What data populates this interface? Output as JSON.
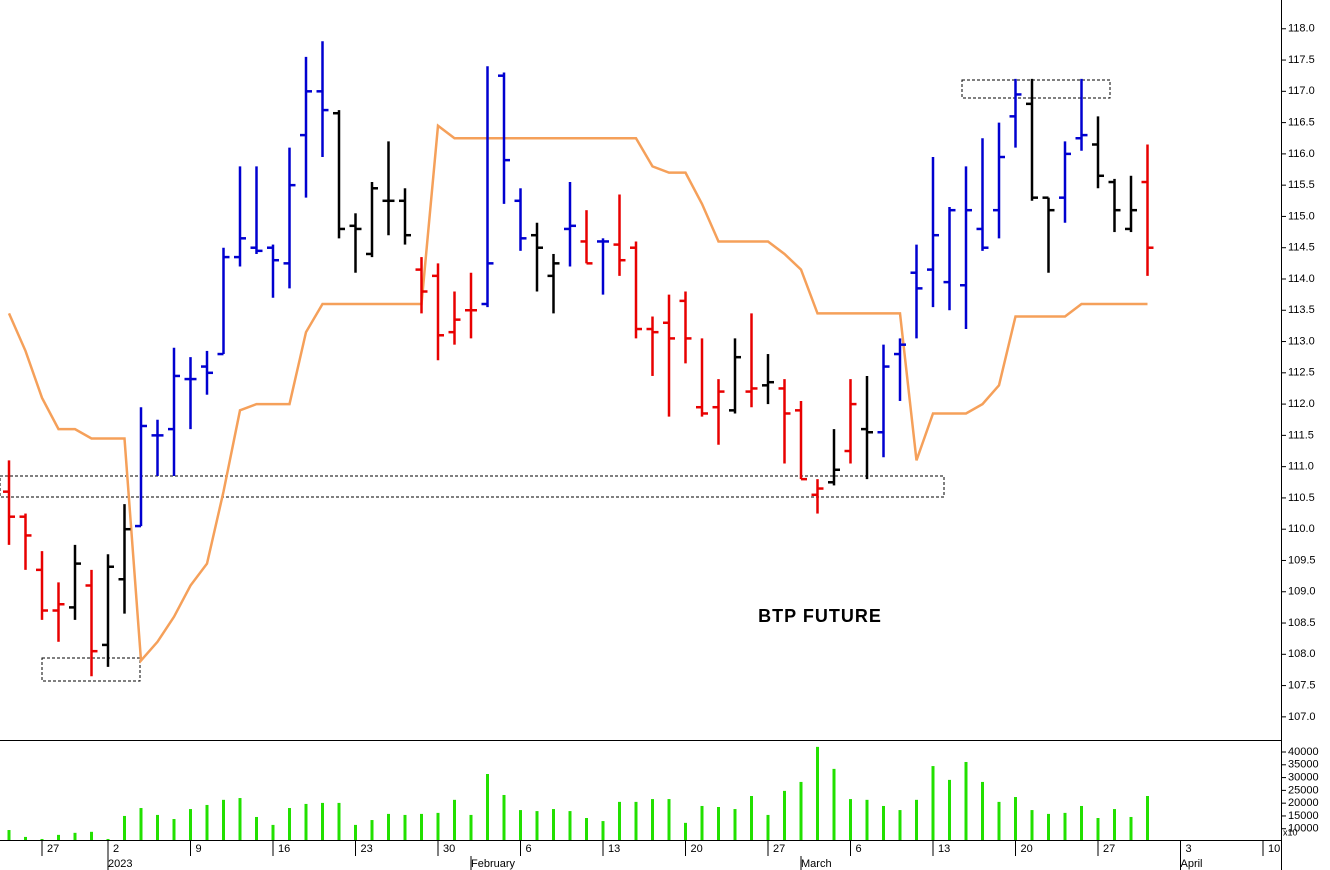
{
  "chart_data": [
    {
      "type": "ohlc",
      "title": "BTP FUTURE",
      "open": [
        110.6,
        110.2,
        109.35,
        108.7,
        108.75,
        109.1,
        108.15,
        109.2,
        110.05,
        111.5,
        111.6,
        112.4,
        112.6,
        112.8,
        114.35,
        114.5,
        114.5,
        114.25,
        116.3,
        117.0,
        116.65,
        114.85,
        114.4,
        115.25,
        115.25,
        114.15,
        114.05,
        113.15,
        113.5,
        113.6,
        117.25,
        115.25,
        114.7,
        114.05,
        114.8,
        114.6,
        114.6,
        114.55,
        114.5,
        113.2,
        113.3,
        113.65,
        111.95,
        111.95,
        111.9,
        112.2,
        112.3,
        112.25,
        111.9,
        110.55,
        110.75,
        111.25,
        111.6,
        111.55,
        112.8,
        114.1,
        114.15,
        113.95,
        113.9,
        114.8,
        115.1,
        116.6,
        116.8,
        115.3,
        115.3,
        116.25,
        116.15,
        115.55,
        114.8,
        115.55,
        null,
        null,
        null,
        null,
        null,
        null,
        null,
        null
      ],
      "high": [
        111.1,
        110.25,
        109.65,
        109.15,
        109.75,
        109.35,
        109.6,
        110.4,
        111.95,
        111.75,
        112.9,
        112.75,
        112.85,
        114.5,
        115.8,
        115.8,
        114.55,
        116.1,
        117.55,
        117.8,
        116.7,
        115.05,
        115.55,
        116.2,
        115.45,
        114.35,
        114.25,
        113.8,
        114.1,
        117.4,
        117.3,
        115.45,
        114.9,
        114.4,
        115.55,
        115.1,
        114.65,
        115.35,
        114.6,
        113.4,
        113.75,
        113.8,
        113.05,
        112.4,
        113.05,
        113.45,
        112.8,
        112.4,
        112.05,
        110.8,
        111.6,
        112.4,
        112.45,
        112.95,
        113.05,
        114.55,
        115.95,
        115.15,
        115.8,
        116.25,
        116.5,
        117.2,
        117.2,
        115.3,
        116.2,
        117.2,
        116.6,
        115.6,
        115.65,
        116.15,
        null,
        null,
        null,
        null,
        null,
        null,
        null,
        null
      ],
      "low": [
        109.75,
        109.35,
        108.55,
        108.2,
        108.55,
        107.65,
        107.8,
        108.65,
        110.05,
        110.85,
        110.85,
        111.6,
        112.15,
        112.8,
        114.2,
        114.4,
        113.7,
        113.85,
        115.3,
        115.95,
        114.65,
        114.1,
        114.35,
        114.7,
        114.55,
        113.45,
        112.7,
        112.95,
        113.05,
        113.55,
        115.2,
        114.45,
        113.8,
        113.45,
        114.2,
        114.25,
        113.75,
        114.05,
        113.05,
        112.45,
        111.8,
        112.65,
        111.8,
        111.35,
        111.85,
        111.95,
        112.0,
        111.05,
        110.8,
        110.25,
        110.7,
        111.05,
        110.8,
        111.15,
        112.05,
        113.05,
        113.55,
        113.5,
        113.2,
        114.45,
        114.65,
        116.1,
        115.25,
        114.1,
        114.9,
        116.05,
        115.45,
        114.75,
        114.75,
        114.05,
        null,
        null,
        null,
        null,
        null,
        null,
        null,
        null
      ],
      "close": [
        110.2,
        109.9,
        108.7,
        108.8,
        109.45,
        108.05,
        109.4,
        110.0,
        111.65,
        111.5,
        112.45,
        112.4,
        112.5,
        114.35,
        114.65,
        114.45,
        114.3,
        115.5,
        117.0,
        116.7,
        114.8,
        114.8,
        115.45,
        115.25,
        114.7,
        113.8,
        113.1,
        113.35,
        113.5,
        114.25,
        115.9,
        114.65,
        114.5,
        114.25,
        114.85,
        114.25,
        114.6,
        114.3,
        113.2,
        113.15,
        113.05,
        113.05,
        111.85,
        112.2,
        112.75,
        112.25,
        112.35,
        111.85,
        110.8,
        110.65,
        110.95,
        112.0,
        111.55,
        112.6,
        112.95,
        113.85,
        114.7,
        115.1,
        115.1,
        114.5,
        115.95,
        116.95,
        115.3,
        115.1,
        116.0,
        116.3,
        115.65,
        115.1,
        115.1,
        114.5,
        null,
        null,
        null,
        null,
        null,
        null,
        null,
        null
      ],
      "bar_colors": [
        "#e80000",
        "#e80000",
        "#e80000",
        "#e80000",
        "#000000",
        "#e80000",
        "#000000",
        "#000000",
        "#0000d0",
        "#0000d0",
        "#0000d0",
        "#0000d0",
        "#0000d0",
        "#0000d0",
        "#0000d0",
        "#0000d0",
        "#0000d0",
        "#0000d0",
        "#0000d0",
        "#0000d0",
        "#000000",
        "#000000",
        "#000000",
        "#000000",
        "#000000",
        "#e80000",
        "#e80000",
        "#e80000",
        "#e80000",
        "#0000d0",
        "#0000d0",
        "#0000d0",
        "#000000",
        "#000000",
        "#0000d0",
        "#e80000",
        "#0000d0",
        "#e80000",
        "#e80000",
        "#e80000",
        "#e80000",
        "#e80000",
        "#e80000",
        "#e80000",
        "#000000",
        "#e80000",
        "#000000",
        "#e80000",
        "#e80000",
        "#e80000",
        "#000000",
        "#e80000",
        "#000000",
        "#0000d0",
        "#0000d0",
        "#0000d0",
        "#0000d0",
        "#0000d0",
        "#0000d0",
        "#0000d0",
        "#0000d0",
        "#0000d0",
        "#000000",
        "#000000",
        "#0000d0",
        "#0000d0",
        "#000000",
        "#000000",
        "#000000",
        "#e80000",
        null,
        null,
        null,
        null,
        null,
        null,
        null,
        null
      ],
      "series": [
        {
          "color": "#f5a05a",
          "values": [
            113.45,
            112.85,
            112.1,
            111.6,
            111.6,
            111.45,
            111.45,
            111.45,
            107.9,
            108.2,
            108.6,
            109.1,
            109.45,
            110.6,
            111.9,
            112.0,
            112.0,
            112.0,
            113.15,
            113.6,
            113.6,
            113.6,
            113.6,
            113.6,
            113.6,
            113.6,
            116.45,
            116.25,
            116.25,
            116.25,
            116.25,
            116.25,
            116.25,
            116.25,
            116.25,
            116.25,
            116.25,
            116.25,
            116.25,
            115.8,
            115.7,
            115.7,
            115.2,
            114.6,
            114.6,
            114.6,
            114.6,
            114.4,
            114.15,
            113.45,
            113.45,
            113.45,
            113.45,
            113.45,
            113.45,
            111.1,
            111.85,
            111.85,
            111.85,
            112.0,
            112.3,
            113.4,
            113.4,
            113.4,
            113.4,
            113.6,
            113.6,
            113.6,
            113.6,
            113.6,
            null,
            null,
            null,
            null,
            null,
            null,
            null,
            null
          ]
        }
      ],
      "ylim": [
        106.63,
        118.46
      ],
      "yticks": [
        {
          "value": 107,
          "label": "107.0"
        },
        107.5,
        {
          "value": 108,
          "label": "108.0"
        },
        108.5,
        {
          "value": 109,
          "label": "109.0"
        },
        109.5,
        {
          "value": 110,
          "label": "110.0"
        },
        110.5,
        {
          "value": 111,
          "label": "111.0"
        },
        111.5,
        {
          "value": 112,
          "label": "112.0"
        },
        112.5,
        {
          "value": 113,
          "label": "113.0"
        },
        113.5,
        {
          "value": 114,
          "label": "114.0"
        },
        114.5,
        {
          "value": 115,
          "label": "115.0"
        },
        115.5,
        {
          "value": 116,
          "label": "116.0"
        },
        116.5,
        {
          "value": 117,
          "label": "117.0"
        },
        117.5,
        {
          "value": 118,
          "label": "118.0"
        }
      ]
    },
    {
      "type": "bar",
      "color": "#22e000",
      "scale_note": "x10",
      "categories": [
        null,
        null,
        "27",
        null,
        null,
        null,
        "2",
        null,
        null,
        null,
        null,
        "9",
        null,
        null,
        null,
        null,
        "16",
        null,
        null,
        null,
        null,
        "23",
        null,
        null,
        null,
        null,
        "30",
        null,
        null,
        null,
        null,
        "6",
        null,
        null,
        null,
        null,
        "13",
        null,
        null,
        null,
        null,
        "20",
        null,
        null,
        null,
        null,
        "27",
        null,
        null,
        null,
        null,
        "6",
        null,
        null,
        null,
        null,
        "13",
        null,
        null,
        null,
        null,
        "20",
        null,
        null,
        null,
        null,
        "27",
        null,
        null,
        null,
        null,
        "3",
        null,
        null,
        null,
        null,
        "10",
        null
      ],
      "months": [
        null,
        null,
        null,
        null,
        null,
        null,
        "2023",
        null,
        null,
        null,
        null,
        null,
        null,
        null,
        null,
        null,
        null,
        null,
        null,
        null,
        null,
        null,
        null,
        null,
        null,
        null,
        null,
        null,
        "February",
        null,
        null,
        null,
        null,
        null,
        null,
        null,
        null,
        null,
        null,
        null,
        null,
        null,
        null,
        null,
        null,
        null,
        null,
        null,
        "March",
        null,
        null,
        null,
        null,
        null,
        null,
        null,
        null,
        null,
        null,
        null,
        null,
        null,
        null,
        null,
        null,
        null,
        null,
        null,
        null,
        null,
        null,
        "April",
        null,
        null,
        null,
        null,
        null,
        null
      ],
      "values": [
        9500,
        6800,
        6000,
        7600,
        8400,
        8800,
        6000,
        15000,
        18100,
        15400,
        13800,
        17700,
        19300,
        21300,
        22000,
        14600,
        11500,
        18100,
        19700,
        20100,
        20100,
        11500,
        13400,
        15800,
        15400,
        15800,
        16200,
        21300,
        15400,
        31400,
        23200,
        17300,
        16900,
        17700,
        16900,
        14200,
        13000,
        20500,
        20500,
        21600,
        21600,
        12300,
        18900,
        18500,
        17700,
        22800,
        15400,
        24800,
        28300,
        42000,
        33400,
        21600,
        21300,
        18900,
        17300,
        21300,
        34500,
        29100,
        36100,
        28300,
        20500,
        22400,
        17300,
        15800,
        16200,
        18900,
        14200,
        17700,
        14600,
        22800,
        null,
        null,
        null,
        null,
        null,
        null,
        null,
        null
      ],
      "ylim": [
        5600,
        44300
      ],
      "yticks": [
        10000,
        15000,
        20000,
        25000,
        30000,
        35000,
        40000
      ]
    }
  ]
}
